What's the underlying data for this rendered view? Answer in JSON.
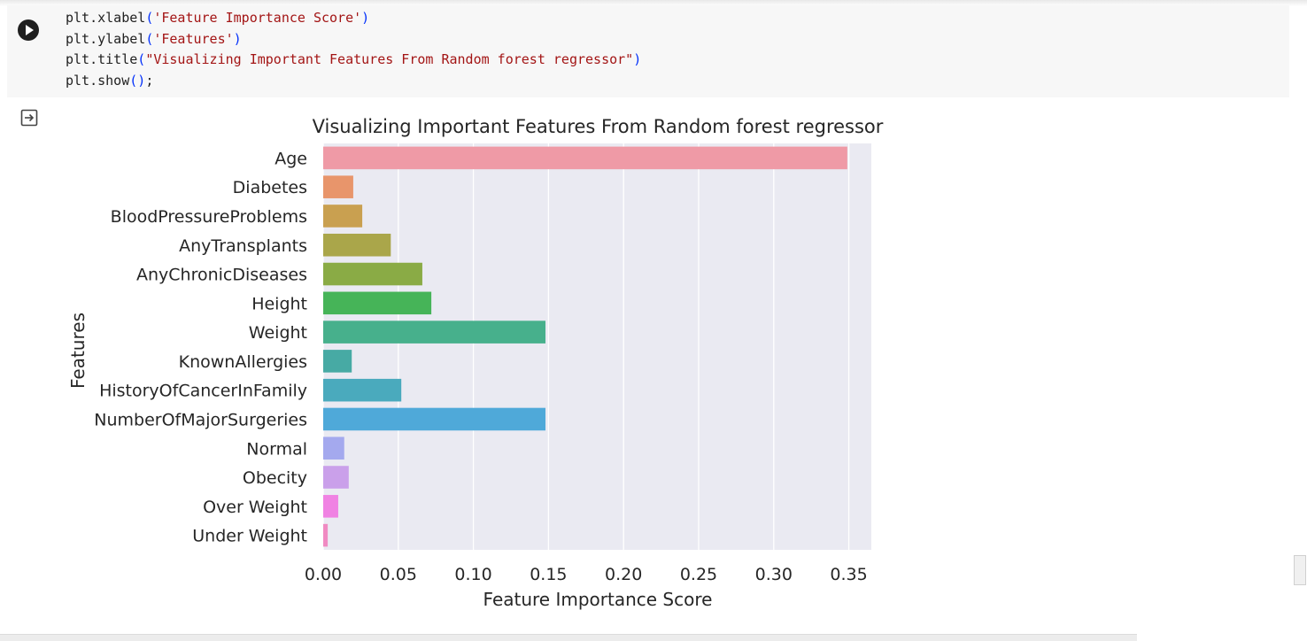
{
  "code_cell": {
    "lines": [
      [
        {
          "t": "plt.xlabel",
          "c": "plain"
        },
        {
          "t": "(",
          "c": "paren"
        },
        {
          "t": "'Feature Importance Score'",
          "c": "str"
        },
        {
          "t": ")",
          "c": "paren"
        }
      ],
      [
        {
          "t": "plt.ylabel",
          "c": "plain"
        },
        {
          "t": "(",
          "c": "paren"
        },
        {
          "t": "'Features'",
          "c": "str"
        },
        {
          "t": ")",
          "c": "paren"
        }
      ],
      [
        {
          "t": "plt.title",
          "c": "plain"
        },
        {
          "t": "(",
          "c": "paren"
        },
        {
          "t": "\"Visualizing Important Features From Random forest regressor\"",
          "c": "str"
        },
        {
          "t": ")",
          "c": "paren"
        }
      ],
      [
        {
          "t": "plt.show",
          "c": "plain"
        },
        {
          "t": "()",
          "c": "paren"
        },
        {
          "t": ";",
          "c": "plain"
        }
      ]
    ],
    "run_icon": "play-circle-icon",
    "output_icon": "output-redirect-icon"
  },
  "chart_data": {
    "type": "bar",
    "orientation": "horizontal",
    "title": "Visualizing Important Features From Random forest regressor",
    "xlabel": "Feature Importance Score",
    "ylabel": "Features",
    "xlim": [
      0,
      0.365
    ],
    "xticks": [
      "0.00",
      "0.05",
      "0.10",
      "0.15",
      "0.20",
      "0.25",
      "0.30",
      "0.35"
    ],
    "grid": true,
    "background": "#eaeaf2",
    "categories": [
      "Age",
      "Diabetes",
      "BloodPressureProblems",
      "AnyTransplants",
      "AnyChronicDiseases",
      "Height",
      "Weight",
      "KnownAllergies",
      "HistoryOfCancerInFamily",
      "NumberOfMajorSurgeries",
      "Normal",
      "Obecity",
      "Over Weight",
      "Under Weight"
    ],
    "values": [
      0.349,
      0.02,
      0.026,
      0.045,
      0.066,
      0.072,
      0.148,
      0.019,
      0.052,
      0.148,
      0.014,
      0.017,
      0.01,
      0.003
    ],
    "colors": [
      "#ef9aa6",
      "#e8956b",
      "#c9a050",
      "#aaa64a",
      "#8aab45",
      "#46b458",
      "#47b08c",
      "#47aaa4",
      "#4aaabd",
      "#4fa9d9",
      "#a4a9ee",
      "#caa0ea",
      "#f082e3",
      "#f08ac2"
    ]
  }
}
